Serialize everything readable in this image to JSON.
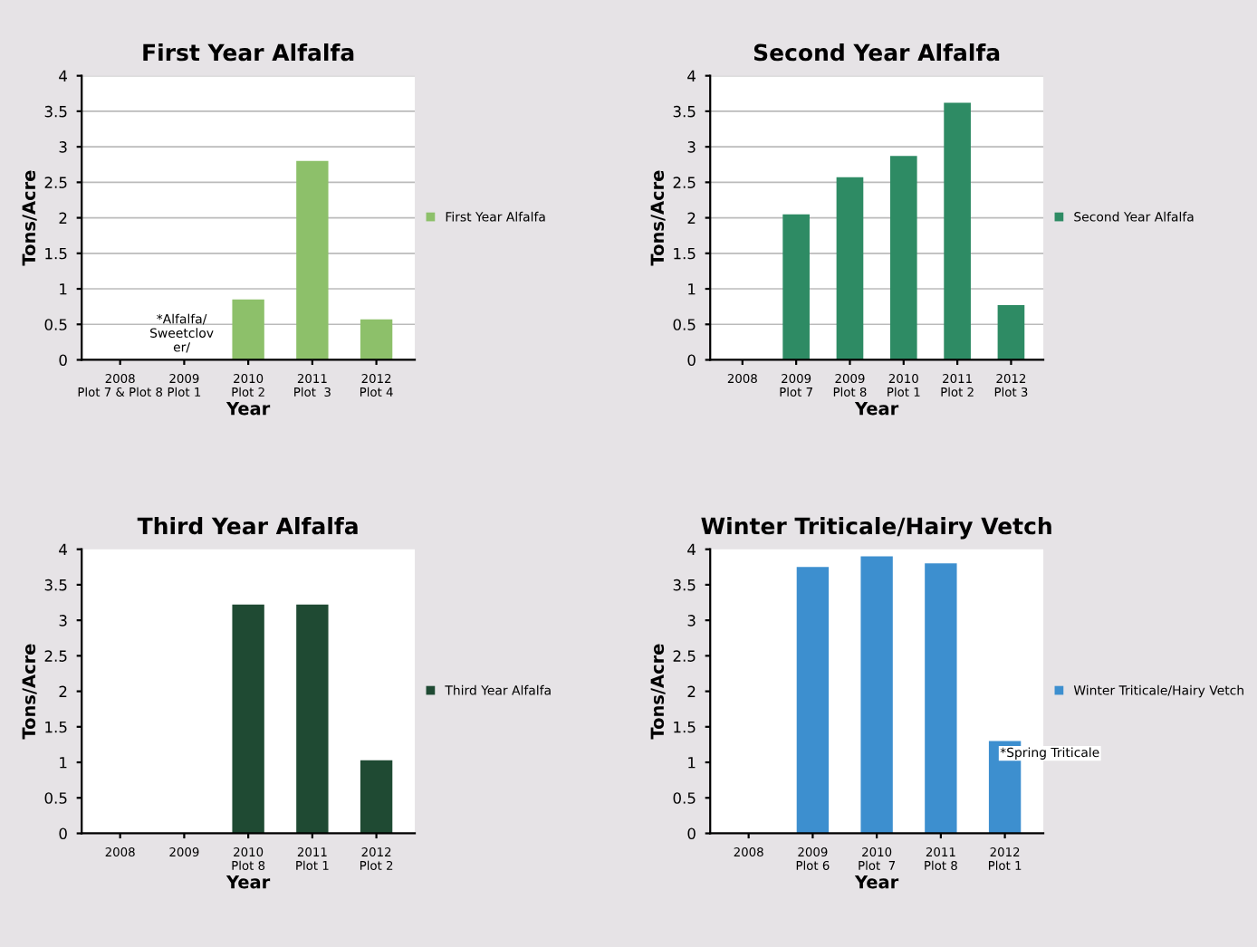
{
  "chart_data": [
    {
      "type": "bar",
      "title": "First Year Alfalfa",
      "xlabel": "Year",
      "ylabel": "Tons/Acre",
      "categories": [
        "2008\nPlot 7 & Plot 8",
        "2009\nPlot 1",
        "2010\nPlot 2",
        "2011\nPlot  3",
        "2012\nPlot 4"
      ],
      "series": [
        {
          "name": "First Year Alfalfa",
          "color": "#8dc06a",
          "values": [
            null,
            null,
            0.85,
            2.8,
            0.57
          ]
        }
      ],
      "ylim": [
        0,
        4
      ],
      "yticks": [
        0,
        0.5,
        1,
        1.5,
        2,
        2.5,
        3,
        3.5,
        4
      ],
      "grid": "y",
      "legend": "right",
      "annotations": [
        "*Alfalfa/\nSweetclov\ner/"
      ]
    },
    {
      "type": "bar",
      "title": "Second Year Alfalfa",
      "xlabel": "Year",
      "ylabel": "Tons/Acre",
      "categories": [
        "2008",
        "2009\nPlot 7",
        "2009\nPlot 8",
        "2010\nPlot 1",
        "2011\nPlot 2",
        "2012\nPlot 3"
      ],
      "series": [
        {
          "name": "Second Year Alfalfa",
          "color": "#2e8b64",
          "values": [
            null,
            2.05,
            2.57,
            2.87,
            3.62,
            0.77
          ]
        }
      ],
      "ylim": [
        0,
        4
      ],
      "yticks": [
        0,
        0.5,
        1,
        1.5,
        2,
        2.5,
        3,
        3.5,
        4
      ],
      "grid": "y",
      "legend": "right"
    },
    {
      "type": "bar",
      "title": "Third Year Alfalfa",
      "xlabel": "Year",
      "ylabel": "Tons/Acre",
      "categories": [
        "2008",
        "2009",
        "2010\nPlot 8",
        "2011\nPlot 1",
        "2012\nPlot 2"
      ],
      "series": [
        {
          "name": "Third Year Alfalfa",
          "color": "#1f4a33",
          "values": [
            null,
            null,
            3.22,
            3.22,
            1.03
          ]
        }
      ],
      "ylim": [
        0,
        4
      ],
      "yticks": [
        0,
        0.5,
        1,
        1.5,
        2,
        2.5,
        3,
        3.5,
        4
      ],
      "grid": false,
      "legend": "right"
    },
    {
      "type": "bar",
      "title": "Winter Triticale/Hairy Vetch",
      "xlabel": "Year",
      "ylabel": "Tons/Acre",
      "categories": [
        "2008",
        "2009\nPlot 6",
        "2010\nPlot  7",
        "2011\nPlot 8",
        "2012\nPlot 1"
      ],
      "series": [
        {
          "name": "Winter Triticale/Hairy Vetch",
          "color": "#3d8fcf",
          "values": [
            null,
            3.75,
            3.9,
            3.8,
            1.3
          ]
        }
      ],
      "ylim": [
        0,
        4
      ],
      "yticks": [
        0,
        0.5,
        1,
        1.5,
        2,
        2.5,
        3,
        3.5,
        4
      ],
      "grid": false,
      "legend": "right",
      "annotations": [
        "*Spring Triticale"
      ]
    }
  ]
}
